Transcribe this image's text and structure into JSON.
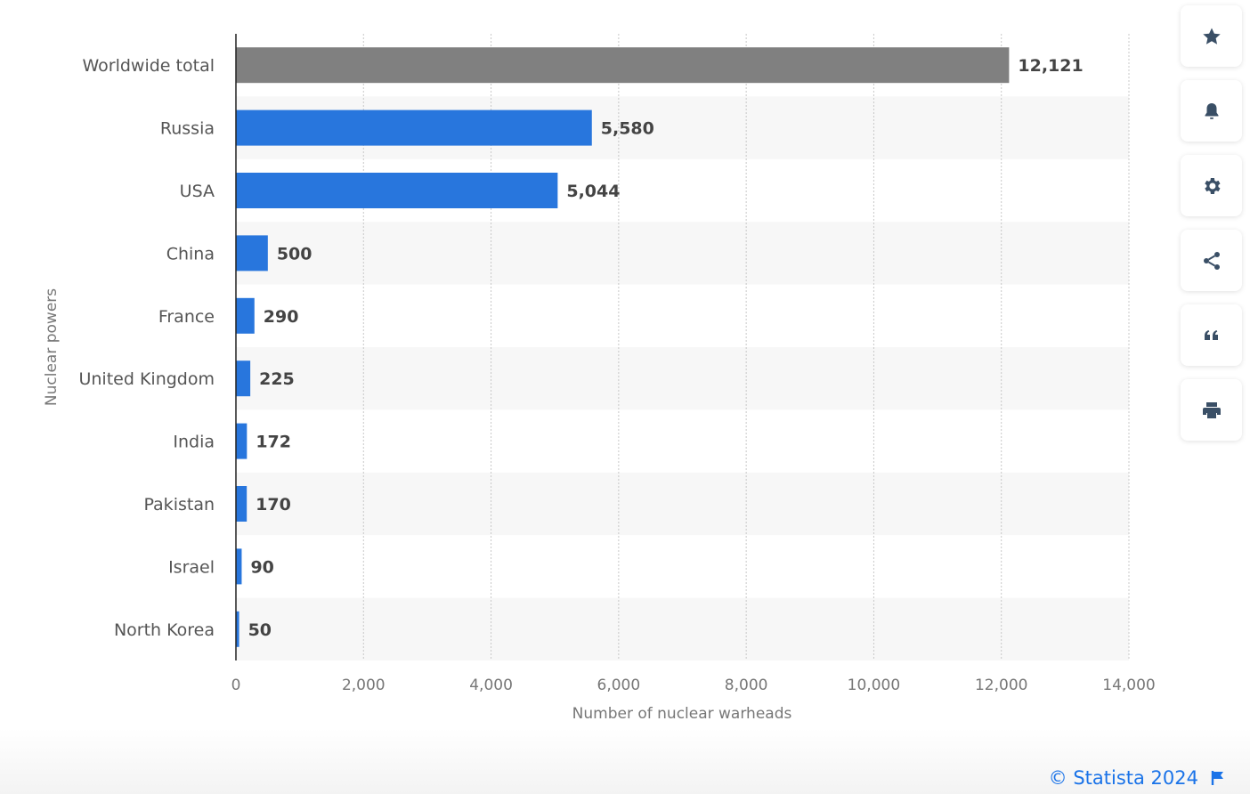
{
  "chart_data": {
    "type": "bar",
    "orientation": "horizontal",
    "categories": [
      "Worldwide total",
      "Russia",
      "USA",
      "China",
      "France",
      "United Kingdom",
      "India",
      "Pakistan",
      "Israel",
      "North Korea"
    ],
    "values": [
      12121,
      5580,
      5044,
      500,
      290,
      225,
      172,
      170,
      90,
      50
    ],
    "value_labels": [
      "12,121",
      "5,580",
      "5,044",
      "500",
      "290",
      "225",
      "172",
      "170",
      "90",
      "50"
    ],
    "bar_colors": [
      "#808080",
      "#2876dd",
      "#2876dd",
      "#2876dd",
      "#2876dd",
      "#2876dd",
      "#2876dd",
      "#2876dd",
      "#2876dd",
      "#2876dd"
    ],
    "xlabel": "Number of nuclear warheads",
    "ylabel": "Nuclear powers",
    "xlim": [
      0,
      14000
    ],
    "xticks": [
      0,
      2000,
      4000,
      6000,
      8000,
      10000,
      12000,
      14000
    ],
    "xtick_labels": [
      "0",
      "2,000",
      "4,000",
      "6,000",
      "8,000",
      "10,000",
      "12,000",
      "14,000"
    ],
    "grid": true,
    "alternating_row_bands": true
  },
  "footer": {
    "source": "© Statista 2024",
    "link_color": "#1a73e8"
  },
  "sidebar": {
    "buttons": [
      {
        "icon": "star-icon",
        "name": "favorite-button"
      },
      {
        "icon": "bell-icon",
        "name": "notification-button"
      },
      {
        "icon": "gear-icon",
        "name": "settings-button"
      },
      {
        "icon": "share-icon",
        "name": "share-button"
      },
      {
        "icon": "quote-icon",
        "name": "cite-button"
      },
      {
        "icon": "print-icon",
        "name": "print-button"
      }
    ]
  }
}
